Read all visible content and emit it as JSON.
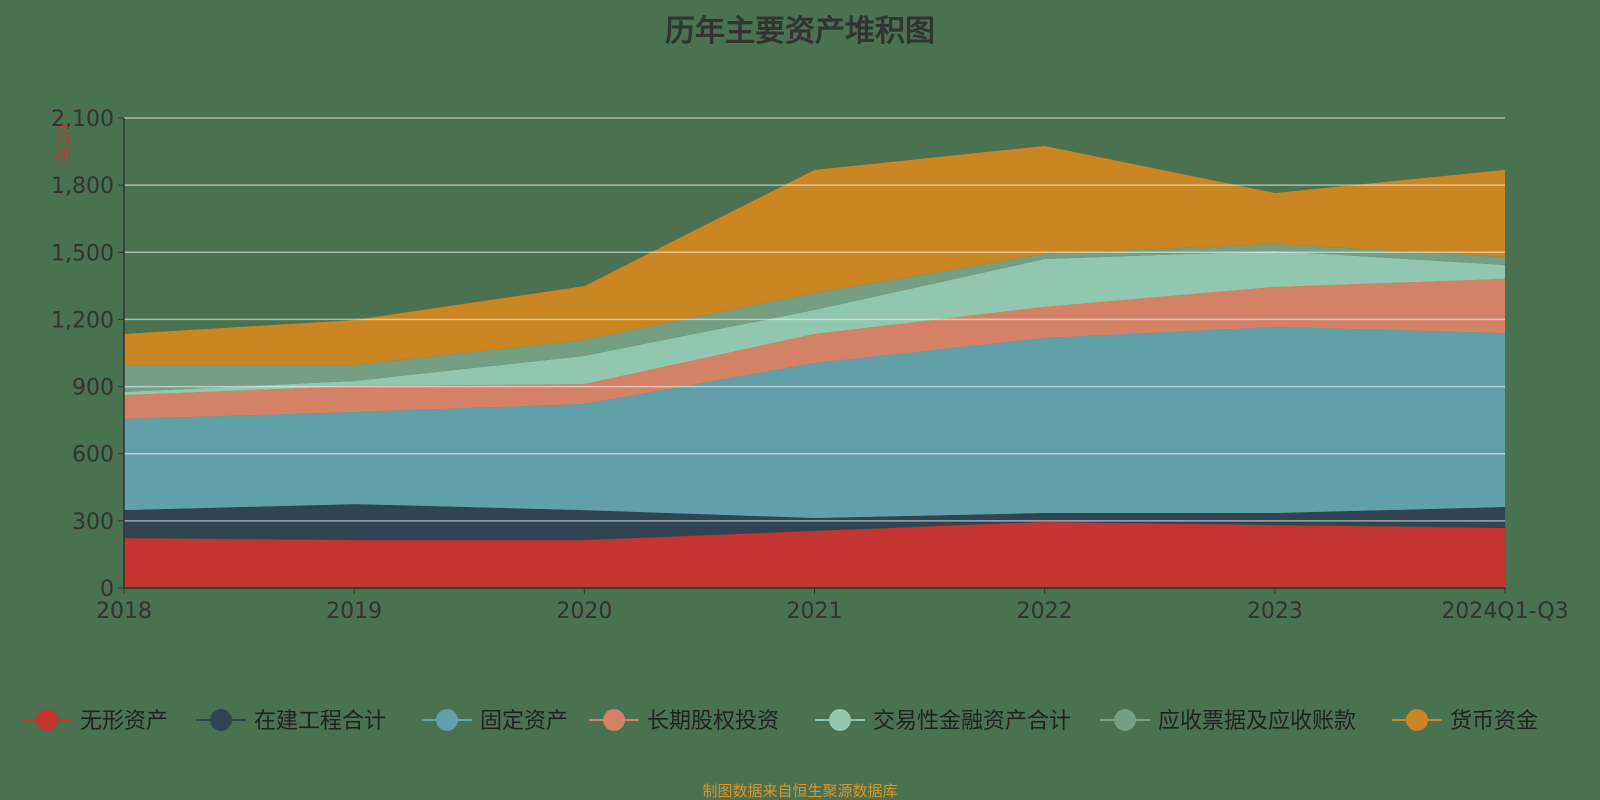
{
  "chart_data": {
    "type": "area",
    "stacked": true,
    "title": "历年主要资产堆积图",
    "ylabel": "(亿元)",
    "xlabel": "",
    "categories": [
      "2018",
      "2019",
      "2020",
      "2021",
      "2022",
      "2023",
      "2024Q1-Q3"
    ],
    "ylim": [
      0,
      2100
    ],
    "yticks": [
      "0",
      "300",
      "600",
      "900",
      "1,200",
      "1,500",
      "1,800",
      "2,100"
    ],
    "grid": true,
    "legend_position": "bottom",
    "series": [
      {
        "name": "无形资产",
        "color": "#c23531",
        "values": [
          223,
          214,
          214,
          255,
          295,
          281,
          268
        ]
      },
      {
        "name": "在建工程合计",
        "color": "#2f4554",
        "values": [
          125,
          161,
          134,
          58,
          40,
          54,
          94
        ]
      },
      {
        "name": "固定资产",
        "color": "#61a0a8",
        "values": [
          407,
          411,
          474,
          692,
          782,
          831,
          777
        ]
      },
      {
        "name": "长期股权投资",
        "color": "#d48265",
        "values": [
          107,
          116,
          89,
          130,
          139,
          179,
          242
        ]
      },
      {
        "name": "交易性金融资产合计",
        "color": "#91c7ae",
        "values": [
          14,
          23,
          126,
          107,
          214,
          161,
          62
        ]
      },
      {
        "name": "应收票据及应收账款",
        "color": "#749f83",
        "values": [
          120,
          71,
          71,
          76,
          22,
          31,
          36
        ]
      },
      {
        "name": "货币资金",
        "color": "#ca8622",
        "values": [
          139,
          201,
          241,
          550,
          483,
          228,
          389
        ]
      }
    ]
  },
  "source": "制图数据来自恒生聚源数据库"
}
